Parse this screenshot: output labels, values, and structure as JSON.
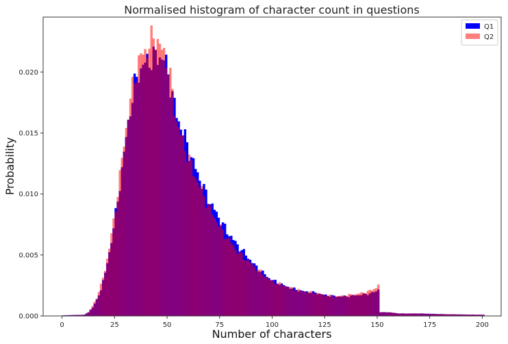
{
  "chart_data": {
    "type": "bar",
    "subtype": "overlaid-histogram",
    "title": "Normalised histogram of character count in questions",
    "xlabel": "Number of characters",
    "ylabel": "Probability",
    "xlim": [
      -9,
      209
    ],
    "ylim": [
      0,
      0.0245
    ],
    "grid": false,
    "legend_placement": "top-right",
    "x_ticks": [
      0,
      25,
      50,
      75,
      100,
      125,
      150,
      175,
      200
    ],
    "x_tick_labels": [
      "0",
      "25",
      "50",
      "75",
      "100",
      "125",
      "150",
      "175",
      "200"
    ],
    "y_ticks": [
      0,
      0.005,
      0.01,
      0.015,
      0.02
    ],
    "y_tick_labels": [
      "0.000",
      "0.005",
      "0.010",
      "0.015",
      "0.020"
    ],
    "bin_width": 1,
    "x": [
      0,
      5,
      10,
      12,
      14,
      16,
      18,
      20,
      22,
      24,
      26,
      28,
      30,
      32,
      34,
      36,
      38,
      40,
      42,
      44,
      46,
      48,
      50,
      52,
      54,
      56,
      58,
      60,
      62,
      64,
      66,
      68,
      70,
      72,
      74,
      76,
      78,
      80,
      82,
      84,
      86,
      88,
      90,
      92,
      94,
      96,
      98,
      100,
      105,
      110,
      115,
      120,
      125,
      130,
      135,
      140,
      145,
      149,
      150,
      151,
      155,
      160,
      170,
      180,
      190,
      200
    ],
    "series": [
      {
        "name": "Q1",
        "color": "#0000ff",
        "values": [
          5e-05,
          8e-05,
          0.0001,
          0.0003,
          0.0007,
          0.0013,
          0.0022,
          0.0035,
          0.0052,
          0.0072,
          0.0095,
          0.012,
          0.0146,
          0.017,
          0.0188,
          0.02,
          0.0205,
          0.0208,
          0.0211,
          0.0212,
          0.0213,
          0.021,
          0.02,
          0.018,
          0.0165,
          0.0155,
          0.0146,
          0.0135,
          0.0125,
          0.0117,
          0.0108,
          0.01,
          0.0093,
          0.0087,
          0.0081,
          0.0075,
          0.0069,
          0.0065,
          0.006,
          0.0056,
          0.0052,
          0.0048,
          0.0044,
          0.004,
          0.0037,
          0.0034,
          0.0031,
          0.0029,
          0.0025,
          0.0022,
          0.002,
          0.0019,
          0.0017,
          0.0016,
          0.0016,
          0.0017,
          0.0018,
          0.002,
          0.0022,
          0.0003,
          0.0003,
          0.0002,
          0.0002,
          0.00015,
          0.00012,
          0.0001
        ]
      },
      {
        "name": "Q2",
        "color": "#ff0000",
        "opacity": 0.5,
        "values": [
          4e-05,
          7e-05,
          0.0001,
          0.0003,
          0.0008,
          0.0015,
          0.0025,
          0.0038,
          0.0056,
          0.0077,
          0.0101,
          0.0128,
          0.0154,
          0.0177,
          0.0195,
          0.0208,
          0.0215,
          0.0219,
          0.0225,
          0.023,
          0.022,
          0.0215,
          0.0205,
          0.0182,
          0.016,
          0.0148,
          0.0138,
          0.0128,
          0.0118,
          0.011,
          0.0102,
          0.0094,
          0.0087,
          0.0081,
          0.0075,
          0.0069,
          0.0064,
          0.006,
          0.0055,
          0.0051,
          0.0048,
          0.0045,
          0.0042,
          0.0039,
          0.0036,
          0.0033,
          0.003,
          0.0028,
          0.0025,
          0.0022,
          0.002,
          0.0019,
          0.0017,
          0.0016,
          0.0017,
          0.0018,
          0.002,
          0.0023,
          0.0026,
          0.0003,
          0.0003,
          0.0002,
          0.0002,
          0.00015,
          0.00012,
          0.0001
        ]
      }
    ],
    "overlap_color": "#800080"
  }
}
